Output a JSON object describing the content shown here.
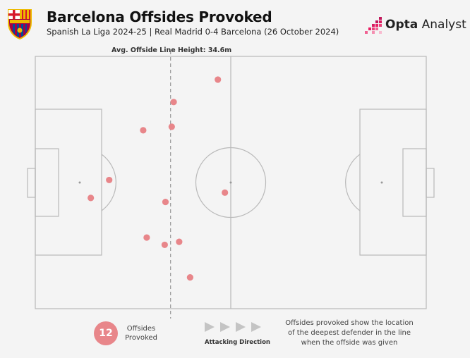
{
  "header": {
    "title": "Barcelona Offsides Provoked",
    "subtitle": "Spanish La Liga 2024-25 | Real Madrid 0-4 Barcelona (26 October 2024)",
    "brand_prefix": "Opta",
    "brand_suffix": "Analyst",
    "crest_icon": "barcelona-crest-icon",
    "brand_icon": "opta-dots-icon"
  },
  "colors": {
    "marker": "#e8868a",
    "pitch_line": "#b9b9b9",
    "offside_line": "#9a9a9a",
    "arrow": "#c4c4c4"
  },
  "chart_data": {
    "type": "scatter",
    "title": "Barcelona Offsides Provoked",
    "xlabel": "",
    "ylabel": "",
    "xlim": [
      0,
      100
    ],
    "ylim": [
      0,
      100
    ],
    "avg_line_label": "Avg. Offside Line Height: 34.6m",
    "avg_line_x": 34.6,
    "series": [
      {
        "points": [
          {
            "x": 46.7,
            "y": 90.8
          },
          {
            "x": 35.4,
            "y": 81.9
          },
          {
            "x": 27.6,
            "y": 70.7
          },
          {
            "x": 34.9,
            "y": 72.1
          },
          {
            "x": 18.9,
            "y": 51.0
          },
          {
            "x": 14.2,
            "y": 43.9
          },
          {
            "x": 48.5,
            "y": 46.0
          },
          {
            "x": 33.3,
            "y": 42.3
          },
          {
            "x": 28.5,
            "y": 28.2
          },
          {
            "x": 36.8,
            "y": 26.5
          },
          {
            "x": 33.1,
            "y": 25.3
          },
          {
            "x": 39.6,
            "y": 12.4
          }
        ]
      }
    ]
  },
  "legend": {
    "count": "12",
    "count_label": "Offsides Provoked",
    "direction_label": "Attacking Direction",
    "note": "Offsides provoked show the location of the deepest defender in the line when the offside was given"
  }
}
